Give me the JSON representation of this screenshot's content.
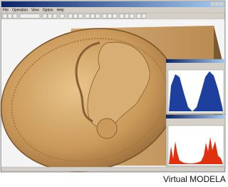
{
  "menu": [
    "File",
    "Operation",
    "View",
    "Option",
    "Help"
  ],
  "caption": "Virtual MODELA"
}
